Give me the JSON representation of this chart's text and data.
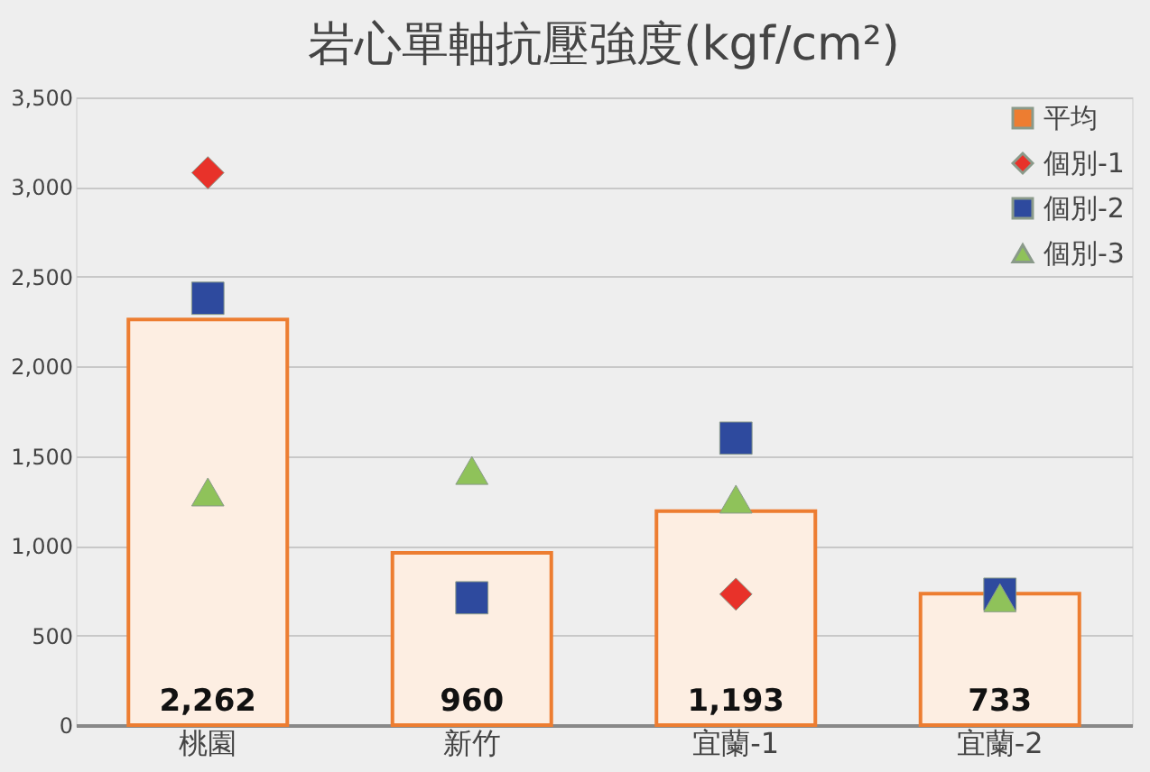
{
  "chart_data": {
    "type": "bar",
    "title": "岩心單軸抗壓強度(kgf/cm²)",
    "categories": [
      "桃園",
      "新竹",
      "宜蘭-1",
      "宜蘭-2"
    ],
    "series": [
      {
        "name": "平均",
        "color": "#ed7d31",
        "values": [
          2262,
          960,
          1193,
          733
        ],
        "value_labels": [
          "2,262",
          "960",
          "1,193",
          "733"
        ]
      },
      {
        "name": "個別-1",
        "type": "scatter",
        "marker": "diamond",
        "color": "#e8322a",
        "values": [
          3080,
          null,
          730,
          null
        ]
      },
      {
        "name": "個別-2",
        "type": "scatter",
        "marker": "square",
        "color": "#2e4a9e",
        "values": [
          2380,
          710,
          1600,
          730
        ]
      },
      {
        "name": "個別-3",
        "type": "scatter",
        "marker": "triangle",
        "color": "#8fc25a",
        "values": [
          1300,
          1420,
          1260,
          710
        ]
      }
    ],
    "ylim": [
      0,
      3500
    ],
    "yticks": [
      0,
      500,
      {
        "value": 1000,
        "label": "1,000"
      },
      {
        "value": 1500,
        "label": "1,500"
      },
      {
        "value": 2000,
        "label": "2,000"
      },
      {
        "value": 2500,
        "label": "2,500"
      },
      {
        "value": 3000,
        "label": "3,000"
      },
      {
        "value": 3500,
        "label": "3,500"
      }
    ],
    "grid": "y",
    "legend": "top right"
  }
}
